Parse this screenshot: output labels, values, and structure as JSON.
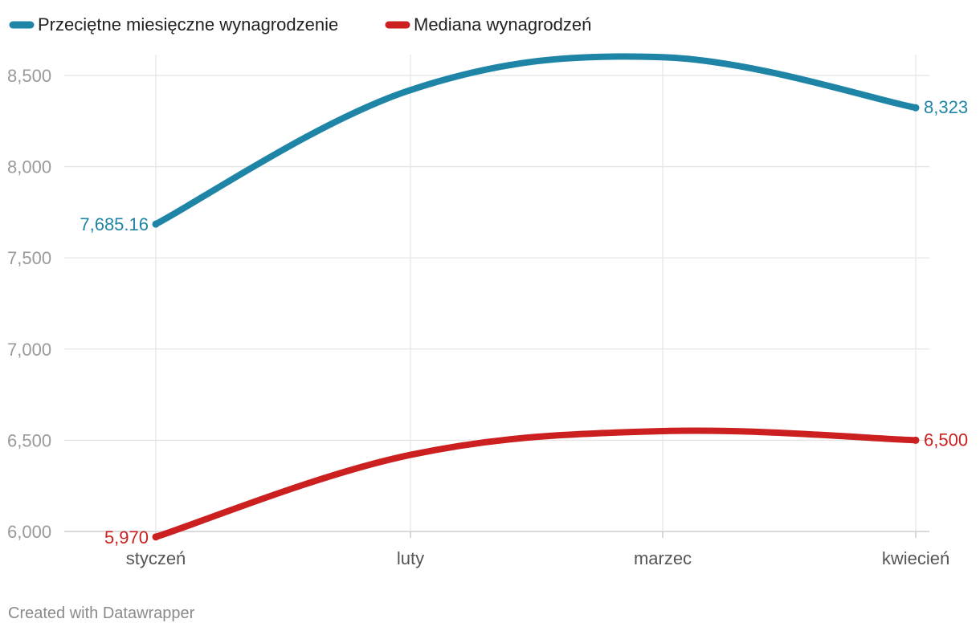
{
  "chart_data": {
    "type": "line",
    "title": "",
    "xlabel": "",
    "ylabel": "",
    "categories": [
      "styczeń",
      "luty",
      "marzec",
      "kwiecień"
    ],
    "ylim": [
      6000,
      8600
    ],
    "yticks": [
      6000,
      6500,
      7000,
      7500,
      8000,
      8500
    ],
    "ytick_labels": [
      "6,000",
      "6,500",
      "7,000",
      "7,500",
      "8,000",
      "8,500"
    ],
    "grid": true,
    "legend_position": "top-left",
    "series": [
      {
        "name": "Przeciętne miesięczne wynagrodzenie",
        "color": "#1f85a6",
        "values": [
          7685.16,
          8420,
          8600,
          8323
        ],
        "start_label": "7,685.16",
        "end_label": "8,323"
      },
      {
        "name": "Mediana wynagrodzeń",
        "color": "#cc1f1f",
        "values": [
          5970,
          6420,
          6550,
          6500
        ],
        "start_label": "5,970",
        "end_label": "6,500"
      }
    ]
  },
  "footer": {
    "credit": "Created with Datawrapper"
  }
}
